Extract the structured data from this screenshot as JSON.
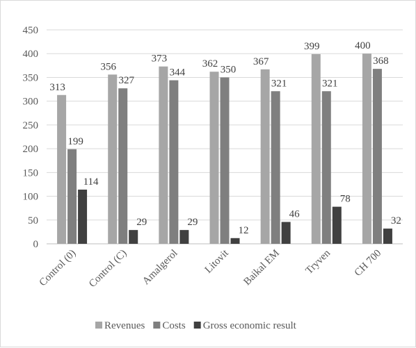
{
  "chart_data": {
    "type": "bar",
    "title": "",
    "xlabel": "",
    "ylabel": "",
    "categories": [
      "Control (0)",
      "Control (C)",
      "Amalgerol",
      "Litovit",
      "Baikal EM",
      "Tryven",
      "CH 700"
    ],
    "series": [
      {
        "name": "Revenues",
        "color": "#a6a6a6",
        "values": [
          313,
          356,
          373,
          362,
          367,
          399,
          400
        ]
      },
      {
        "name": "Costs",
        "color": "#7f7f7f",
        "values": [
          199,
          327,
          344,
          350,
          321,
          321,
          368
        ]
      },
      {
        "name": "Gross economic result",
        "color": "#404040",
        "values": [
          114,
          29,
          29,
          12,
          46,
          78,
          32
        ]
      }
    ],
    "ylim": [
      0,
      450
    ],
    "yticks": [
      0,
      50,
      100,
      150,
      200,
      250,
      300,
      350,
      400,
      450
    ],
    "grid": true,
    "legend_position": "bottom",
    "data_labels": true
  }
}
